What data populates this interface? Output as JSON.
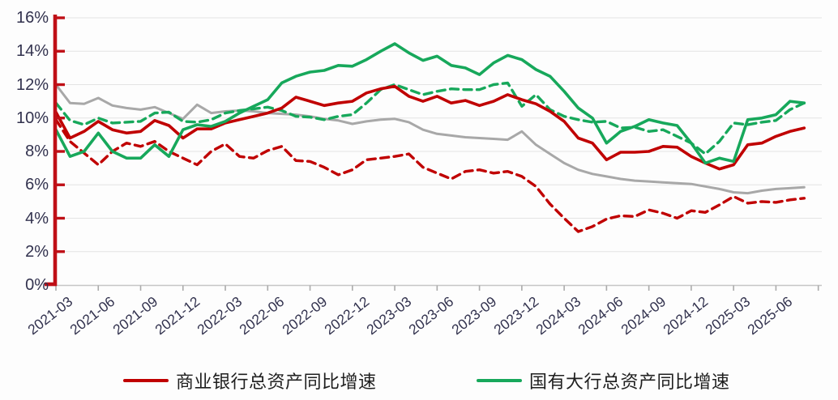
{
  "chart_data": {
    "type": "line",
    "title": "",
    "xlabel": "",
    "ylabel": "",
    "ylim": [
      0,
      16
    ],
    "y_tick_step": 2,
    "grid": "horizontal",
    "legend_position": "bottom",
    "y_ticks": [
      "0%",
      "2%",
      "4%",
      "6%",
      "8%",
      "10%",
      "12%",
      "14%",
      "16%"
    ],
    "x_tick_labels": [
      "2021-03",
      "2021-06",
      "2021-09",
      "2021-12",
      "2022-03",
      "2022-06",
      "2022-09",
      "2022-12",
      "2023-03",
      "2023-06",
      "2023-09",
      "2023-12",
      "2024-03",
      "2024-06",
      "2024-09",
      "2024-12",
      "2025-03",
      "2025-06"
    ],
    "x": [
      "2021-03",
      "2021-04",
      "2021-05",
      "2021-06",
      "2021-07",
      "2021-08",
      "2021-09",
      "2021-10",
      "2021-11",
      "2021-12",
      "2022-01",
      "2022-02",
      "2022-03",
      "2022-04",
      "2022-05",
      "2022-06",
      "2022-07",
      "2022-08",
      "2022-09",
      "2022-10",
      "2022-11",
      "2022-12",
      "2023-01",
      "2023-02",
      "2023-03",
      "2023-04",
      "2023-05",
      "2023-06",
      "2023-07",
      "2023-08",
      "2023-09",
      "2023-10",
      "2023-11",
      "2023-12",
      "2024-01",
      "2024-02",
      "2024-03",
      "2024-04",
      "2024-05",
      "2024-06",
      "2024-07",
      "2024-08",
      "2024-09",
      "2024-10",
      "2024-11",
      "2024-12",
      "2025-01",
      "2025-02",
      "2025-03",
      "2025-04",
      "2025-05",
      "2025-06",
      "2025-07",
      "2025-08"
    ],
    "series": [
      {
        "id": "gray-unlabeled",
        "name": "未标注灰色实线",
        "color": "#a8a8a8",
        "dash": "solid",
        "width": 3.0,
        "values": [
          12.0,
          10.9,
          10.85,
          11.2,
          10.75,
          10.6,
          10.5,
          10.65,
          10.3,
          9.95,
          10.8,
          10.3,
          10.4,
          10.45,
          10.4,
          10.3,
          10.25,
          10.2,
          10.1,
          9.95,
          9.85,
          9.65,
          9.8,
          9.9,
          9.95,
          9.75,
          9.3,
          9.05,
          8.95,
          8.85,
          8.8,
          8.75,
          8.7,
          9.2,
          8.4,
          7.85,
          7.3,
          6.9,
          6.65,
          6.5,
          6.35,
          6.25,
          6.2,
          6.15,
          6.1,
          6.05,
          5.9,
          5.75,
          5.55,
          5.5,
          5.65,
          5.75,
          5.8,
          5.85
        ]
      },
      {
        "id": "green-dashed-unlabeled",
        "name": "未标注绿色虚线",
        "color": "#17a85b",
        "dash": "dashed",
        "width": 3.4,
        "values": [
          10.9,
          9.85,
          9.6,
          10.0,
          9.7,
          9.75,
          9.8,
          10.3,
          10.35,
          9.8,
          9.75,
          9.9,
          10.3,
          10.45,
          10.55,
          10.65,
          10.45,
          10.1,
          10.05,
          9.9,
          10.1,
          10.2,
          10.9,
          11.7,
          12.0,
          11.7,
          11.4,
          11.6,
          11.75,
          11.7,
          11.7,
          12.0,
          12.1,
          10.7,
          11.4,
          10.5,
          10.1,
          9.9,
          9.75,
          9.8,
          9.4,
          9.45,
          9.2,
          9.3,
          8.9,
          8.5,
          7.85,
          8.6,
          9.7,
          9.6,
          9.75,
          9.85,
          10.5,
          10.9
        ]
      },
      {
        "id": "red-dashed-unlabeled",
        "name": "未标注红色虚线",
        "color": "#c00000",
        "dash": "dashed",
        "width": 3.4,
        "values": [
          9.9,
          8.6,
          7.9,
          7.2,
          8.0,
          8.5,
          8.3,
          8.6,
          8.0,
          7.6,
          7.2,
          8.0,
          8.45,
          7.7,
          7.6,
          8.05,
          8.3,
          7.45,
          7.4,
          7.05,
          6.6,
          6.9,
          7.5,
          7.6,
          7.7,
          7.85,
          7.05,
          6.7,
          6.35,
          6.8,
          6.9,
          6.7,
          6.8,
          6.5,
          5.9,
          4.85,
          4.0,
          3.2,
          3.5,
          3.95,
          4.15,
          4.1,
          4.5,
          4.3,
          4.0,
          4.45,
          4.35,
          4.8,
          5.3,
          4.9,
          5.0,
          4.95,
          5.1,
          5.2
        ]
      },
      {
        "id": "commercial-banks",
        "name": "商业银行总资产同比增速",
        "color": "#c00000",
        "dash": "solid",
        "width": 3.6,
        "values": [
          10.35,
          8.8,
          9.2,
          9.8,
          9.3,
          9.1,
          9.2,
          9.85,
          9.55,
          8.8,
          9.35,
          9.35,
          9.7,
          9.9,
          10.1,
          10.3,
          10.6,
          11.25,
          11.0,
          10.75,
          10.9,
          11.0,
          11.5,
          11.75,
          11.9,
          11.3,
          11.0,
          11.3,
          10.9,
          11.05,
          10.75,
          11.0,
          11.4,
          11.1,
          10.85,
          10.4,
          9.8,
          8.8,
          8.5,
          7.5,
          7.95,
          7.95,
          8.0,
          8.3,
          8.25,
          7.7,
          7.3,
          6.95,
          7.2,
          8.4,
          8.5,
          8.9,
          9.2,
          9.4
        ]
      },
      {
        "id": "state-owned-banks",
        "name": "国有大行总资产同比增速",
        "color": "#17a85b",
        "dash": "solid",
        "width": 3.6,
        "values": [
          9.3,
          7.7,
          8.0,
          9.1,
          8.0,
          7.6,
          7.6,
          8.4,
          7.7,
          9.3,
          9.6,
          9.5,
          9.8,
          10.3,
          10.7,
          11.1,
          12.1,
          12.5,
          12.75,
          12.85,
          13.15,
          13.1,
          13.5,
          14.0,
          14.45,
          13.9,
          13.45,
          13.7,
          13.15,
          13.0,
          12.6,
          13.3,
          13.75,
          13.5,
          12.9,
          12.5,
          11.6,
          10.6,
          10.0,
          8.5,
          9.2,
          9.5,
          9.9,
          9.7,
          9.55,
          8.5,
          7.3,
          7.6,
          7.4,
          9.9,
          10.0,
          10.2,
          11.0,
          10.9
        ]
      }
    ],
    "legend": [
      {
        "label": "商业银行总资产同比增速",
        "color": "#c00000"
      },
      {
        "label": "国有大行总资产同比增速",
        "color": "#17a85b"
      }
    ],
    "axis_style": {
      "y_axis_color": "#bf0f16",
      "x_axis_color": "#c6c6c6",
      "x_tick_color": "#ababab",
      "gridline_color": "#e4e4e4",
      "tick_label_color": "#32324e"
    }
  }
}
